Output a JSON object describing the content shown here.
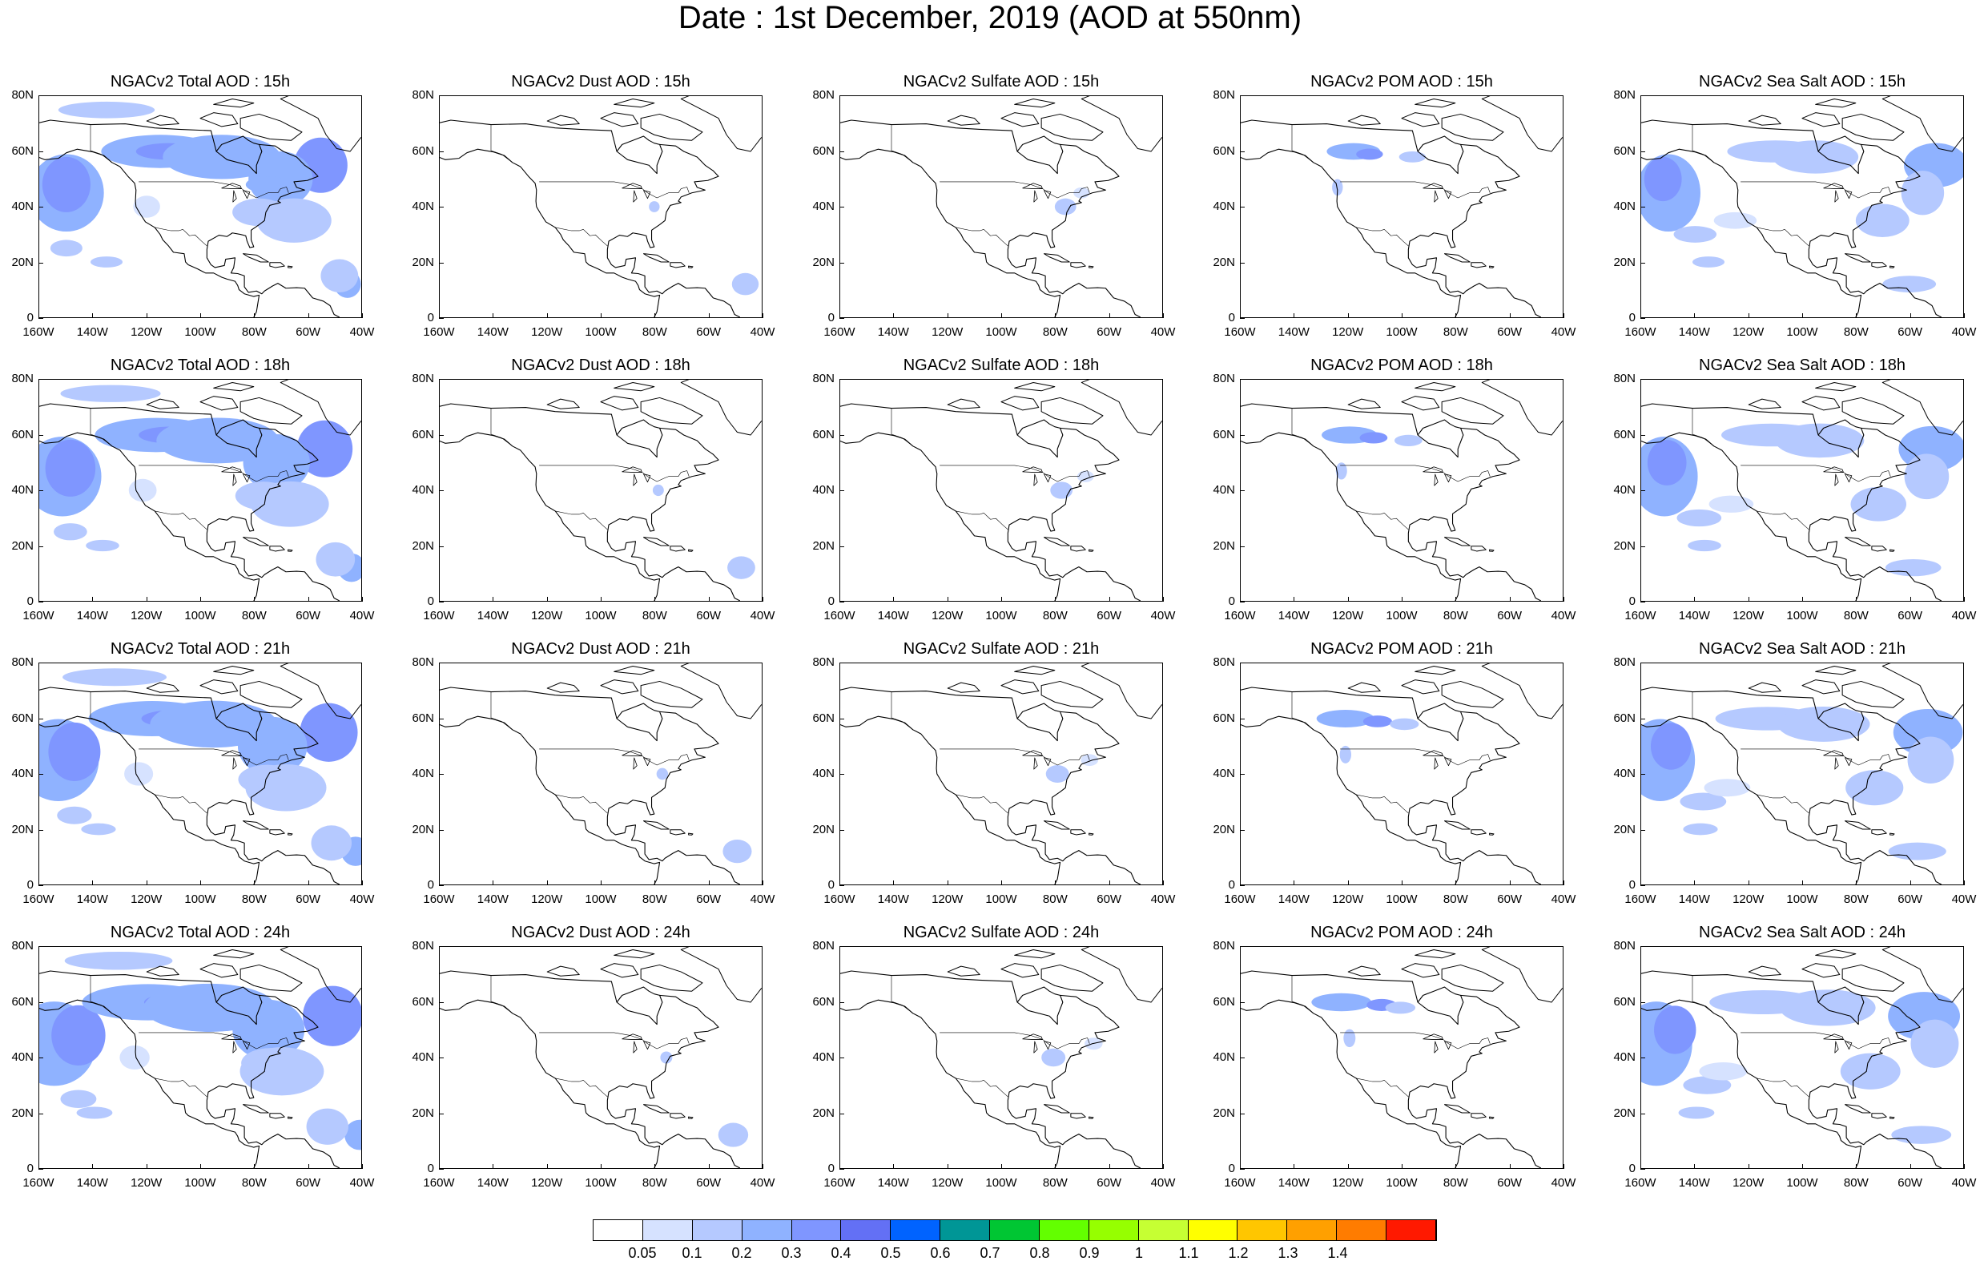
{
  "title": "Date : 1st December, 2019 (AOD at 550nm)",
  "row_titles": [
    [
      "NGACv2 Total AOD : 15h",
      "NGACv2 Dust AOD : 15h",
      "NGACv2 Sulfate AOD : 15h",
      "NGACv2 POM AOD : 15h",
      "NGACv2 Sea Salt AOD : 15h"
    ],
    [
      "NGACv2 Total AOD : 18h",
      "NGACv2 Dust AOD : 18h",
      "NGACv2 Sulfate AOD : 18h",
      "NGACv2 POM AOD : 18h",
      "NGACv2 Sea Salt AOD : 18h"
    ],
    [
      "NGACv2 Total AOD : 21h",
      "NGACv2 Dust AOD : 21h",
      "NGACv2 Sulfate AOD : 21h",
      "NGACv2 POM AOD : 21h",
      "NGACv2 Sea Salt AOD : 21h"
    ],
    [
      "NGACv2 Total AOD : 24h",
      "NGACv2 Dust AOD : 24h",
      "NGACv2 Sulfate AOD : 24h",
      "NGACv2 POM AOD : 24h",
      "NGACv2 Sea Salt  AOD : 24h"
    ]
  ],
  "x_ticks": [
    "160W",
    "140W",
    "120W",
    "100W",
    "80W",
    "60W",
    "40W"
  ],
  "y_ticks": [
    "80N",
    "60N",
    "40N",
    "20N",
    "0"
  ],
  "map_extent": {
    "lon": [
      -160,
      -40
    ],
    "lat": [
      0,
      80
    ]
  },
  "colorbar": {
    "colors": [
      "#ffffff",
      "#d6e2ff",
      "#b5c9ff",
      "#8fb2ff",
      "#7f96ff",
      "#6370f5",
      "#0063ff",
      "#009696",
      "#00c633",
      "#63ff00",
      "#96ff00",
      "#c6ff33",
      "#ffff00",
      "#ffc600",
      "#ffa000",
      "#ff7c00",
      "#ff1900"
    ],
    "labels": [
      "0.05",
      "0.1",
      "0.2",
      "0.3",
      "0.4",
      "0.5",
      "0.6",
      "0.7",
      "0.8",
      "0.9",
      "1",
      "1.1",
      "1.2",
      "1.3",
      "1.4"
    ]
  }
}
